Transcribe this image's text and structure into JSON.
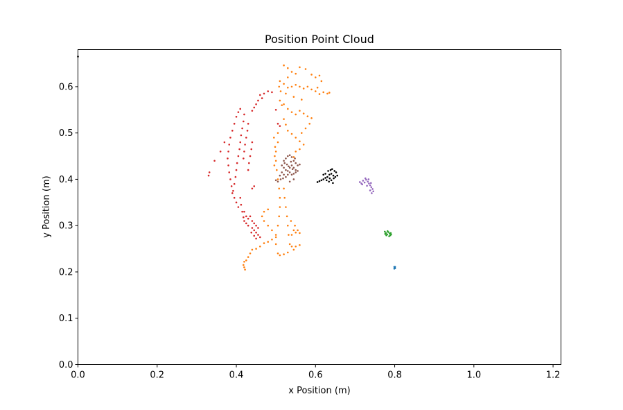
{
  "chart_data": {
    "type": "scatter",
    "title": "Position Point Cloud",
    "xlabel": "x Position (m)",
    "ylabel": "y Position (m)",
    "xlim": [
      0.0,
      1.22
    ],
    "ylim": [
      0.0,
      0.68
    ],
    "xticks": [
      0.0,
      0.2,
      0.4,
      0.6,
      0.8,
      1.0,
      1.2
    ],
    "xtick_labels": [
      "0.0",
      "0.2",
      "0.4",
      "0.6",
      "0.8",
      "1.0",
      "1.2"
    ],
    "yticks": [
      0.0,
      0.1,
      0.2,
      0.3,
      0.4,
      0.5,
      0.6
    ],
    "ytick_labels": [
      "0.0",
      "0.1",
      "0.2",
      "0.3",
      "0.4",
      "0.5",
      "0.6"
    ],
    "grid": false,
    "legend": "none",
    "series": [
      {
        "color": "#1f77b4",
        "points": [
          [
            0.799,
            0.211
          ],
          [
            0.8,
            0.209
          ],
          [
            0.801,
            0.208
          ],
          [
            0.799,
            0.207
          ],
          [
            0.8,
            0.21
          ],
          [
            0.801,
            0.211
          ]
        ]
      },
      {
        "color": "#ff7f0e",
        "points": [
          [
            0.52,
            0.646
          ],
          [
            0.53,
            0.64
          ],
          [
            0.54,
            0.632
          ],
          [
            0.55,
            0.628
          ],
          [
            0.56,
            0.642
          ],
          [
            0.575,
            0.638
          ],
          [
            0.59,
            0.626
          ],
          [
            0.6,
            0.62
          ],
          [
            0.61,
            0.624
          ],
          [
            0.615,
            0.612
          ],
          [
            0.605,
            0.598
          ],
          [
            0.62,
            0.588
          ],
          [
            0.63,
            0.585
          ],
          [
            0.635,
            0.587
          ],
          [
            0.51,
            0.612
          ],
          [
            0.52,
            0.606
          ],
          [
            0.53,
            0.598
          ],
          [
            0.54,
            0.6
          ],
          [
            0.55,
            0.604
          ],
          [
            0.56,
            0.6
          ],
          [
            0.57,
            0.596
          ],
          [
            0.58,
            0.6
          ],
          [
            0.59,
            0.594
          ],
          [
            0.6,
            0.59
          ],
          [
            0.61,
            0.584
          ],
          [
            0.525,
            0.585
          ],
          [
            0.545,
            0.578
          ],
          [
            0.565,
            0.572
          ],
          [
            0.51,
            0.57
          ],
          [
            0.52,
            0.562
          ],
          [
            0.53,
            0.552
          ],
          [
            0.54,
            0.545
          ],
          [
            0.55,
            0.54
          ],
          [
            0.56,
            0.548
          ],
          [
            0.57,
            0.542
          ],
          [
            0.58,
            0.536
          ],
          [
            0.59,
            0.532
          ],
          [
            0.585,
            0.52
          ],
          [
            0.575,
            0.51
          ],
          [
            0.565,
            0.5
          ],
          [
            0.52,
            0.53
          ],
          [
            0.525,
            0.518
          ],
          [
            0.53,
            0.505
          ],
          [
            0.54,
            0.498
          ],
          [
            0.55,
            0.49
          ],
          [
            0.56,
            0.482
          ],
          [
            0.57,
            0.475
          ],
          [
            0.56,
            0.465
          ],
          [
            0.55,
            0.46
          ],
          [
            0.545,
            0.448
          ],
          [
            0.505,
            0.5
          ],
          [
            0.505,
            0.48
          ],
          [
            0.5,
            0.46
          ],
          [
            0.5,
            0.44
          ],
          [
            0.502,
            0.42
          ],
          [
            0.505,
            0.4
          ],
          [
            0.508,
            0.38
          ],
          [
            0.51,
            0.36
          ],
          [
            0.51,
            0.34
          ],
          [
            0.508,
            0.32
          ],
          [
            0.505,
            0.3
          ],
          [
            0.5,
            0.28
          ],
          [
            0.5,
            0.26
          ],
          [
            0.495,
            0.49
          ],
          [
            0.498,
            0.47
          ],
          [
            0.497,
            0.45
          ],
          [
            0.496,
            0.43
          ],
          [
            0.52,
            0.38
          ],
          [
            0.522,
            0.36
          ],
          [
            0.525,
            0.34
          ],
          [
            0.528,
            0.32
          ],
          [
            0.53,
            0.3
          ],
          [
            0.532,
            0.28
          ],
          [
            0.535,
            0.26
          ],
          [
            0.54,
            0.255
          ],
          [
            0.55,
            0.255
          ],
          [
            0.56,
            0.258
          ],
          [
            0.545,
            0.248
          ],
          [
            0.53,
            0.242
          ],
          [
            0.52,
            0.238
          ],
          [
            0.51,
            0.236
          ],
          [
            0.505,
            0.24
          ],
          [
            0.54,
            0.28
          ],
          [
            0.545,
            0.29
          ],
          [
            0.55,
            0.285
          ],
          [
            0.555,
            0.29
          ],
          [
            0.56,
            0.284
          ],
          [
            0.548,
            0.3
          ],
          [
            0.538,
            0.31
          ],
          [
            0.5,
            0.275
          ],
          [
            0.49,
            0.27
          ],
          [
            0.48,
            0.265
          ],
          [
            0.47,
            0.262
          ],
          [
            0.46,
            0.255
          ],
          [
            0.45,
            0.25
          ],
          [
            0.44,
            0.248
          ],
          [
            0.435,
            0.24
          ],
          [
            0.43,
            0.232
          ],
          [
            0.425,
            0.225
          ],
          [
            0.42,
            0.222
          ],
          [
            0.418,
            0.215
          ],
          [
            0.42,
            0.21
          ],
          [
            0.422,
            0.205
          ],
          [
            0.49,
            0.29
          ],
          [
            0.48,
            0.3
          ],
          [
            0.47,
            0.31
          ],
          [
            0.465,
            0.32
          ],
          [
            0.47,
            0.33
          ],
          [
            0.48,
            0.335
          ],
          [
            0.515,
            0.56
          ],
          [
            0.512,
            0.59
          ],
          [
            0.508,
            0.6
          ],
          [
            0.53,
            0.62
          ]
        ]
      },
      {
        "color": "#2ca02c",
        "points": [
          [
            0.775,
            0.287
          ],
          [
            0.778,
            0.284
          ],
          [
            0.781,
            0.281
          ],
          [
            0.784,
            0.286
          ],
          [
            0.787,
            0.283
          ],
          [
            0.789,
            0.279
          ],
          [
            0.791,
            0.281
          ],
          [
            0.779,
            0.279
          ],
          [
            0.782,
            0.288
          ],
          [
            0.786,
            0.277
          ],
          [
            0.79,
            0.284
          ],
          [
            0.776,
            0.282
          ]
        ]
      },
      {
        "color": "#d62728",
        "points": [
          [
            0.46,
            0.582
          ],
          [
            0.465,
            0.575
          ],
          [
            0.47,
            0.585
          ],
          [
            0.48,
            0.59
          ],
          [
            0.49,
            0.588
          ],
          [
            0.455,
            0.57
          ],
          [
            0.45,
            0.562
          ],
          [
            0.445,
            0.555
          ],
          [
            0.44,
            0.548
          ],
          [
            0.41,
            0.552
          ],
          [
            0.405,
            0.545
          ],
          [
            0.4,
            0.535
          ],
          [
            0.395,
            0.52
          ],
          [
            0.39,
            0.505
          ],
          [
            0.385,
            0.49
          ],
          [
            0.382,
            0.475
          ],
          [
            0.38,
            0.46
          ],
          [
            0.378,
            0.445
          ],
          [
            0.42,
            0.54
          ],
          [
            0.418,
            0.525
          ],
          [
            0.415,
            0.51
          ],
          [
            0.412,
            0.495
          ],
          [
            0.41,
            0.48
          ],
          [
            0.408,
            0.465
          ],
          [
            0.405,
            0.45
          ],
          [
            0.402,
            0.435
          ],
          [
            0.4,
            0.42
          ],
          [
            0.398,
            0.405
          ],
          [
            0.395,
            0.39
          ],
          [
            0.392,
            0.375
          ],
          [
            0.43,
            0.52
          ],
          [
            0.428,
            0.505
          ],
          [
            0.425,
            0.49
          ],
          [
            0.422,
            0.475
          ],
          [
            0.42,
            0.46
          ],
          [
            0.418,
            0.445
          ],
          [
            0.44,
            0.48
          ],
          [
            0.438,
            0.465
          ],
          [
            0.435,
            0.45
          ],
          [
            0.432,
            0.435
          ],
          [
            0.43,
            0.42
          ],
          [
            0.38,
            0.43
          ],
          [
            0.382,
            0.415
          ],
          [
            0.385,
            0.4
          ],
          [
            0.388,
            0.385
          ],
          [
            0.39,
            0.37
          ],
          [
            0.395,
            0.36
          ],
          [
            0.4,
            0.35
          ],
          [
            0.405,
            0.34
          ],
          [
            0.41,
            0.36
          ],
          [
            0.412,
            0.345
          ],
          [
            0.415,
            0.33
          ],
          [
            0.418,
            0.318
          ],
          [
            0.42,
            0.31
          ],
          [
            0.425,
            0.305
          ],
          [
            0.43,
            0.3
          ],
          [
            0.44,
            0.31
          ],
          [
            0.445,
            0.305
          ],
          [
            0.45,
            0.3
          ],
          [
            0.455,
            0.295
          ],
          [
            0.44,
            0.295
          ],
          [
            0.445,
            0.29
          ],
          [
            0.45,
            0.285
          ],
          [
            0.455,
            0.28
          ],
          [
            0.46,
            0.275
          ],
          [
            0.45,
            0.272
          ],
          [
            0.445,
            0.278
          ],
          [
            0.438,
            0.285
          ],
          [
            0.42,
            0.33
          ],
          [
            0.425,
            0.32
          ],
          [
            0.43,
            0.315
          ],
          [
            0.435,
            0.32
          ],
          [
            0.33,
            0.408
          ],
          [
            0.332,
            0.415
          ],
          [
            0.345,
            0.44
          ],
          [
            0.36,
            0.46
          ],
          [
            0.37,
            0.48
          ],
          [
            0.5,
            0.55
          ],
          [
            0.505,
            0.52
          ],
          [
            0.51,
            0.515
          ],
          [
            0.445,
            0.385
          ],
          [
            0.44,
            0.38
          ]
        ]
      },
      {
        "color": "#9467bd",
        "points": [
          [
            0.712,
            0.394
          ],
          [
            0.716,
            0.391
          ],
          [
            0.72,
            0.397
          ],
          [
            0.724,
            0.393
          ],
          [
            0.728,
            0.399
          ],
          [
            0.732,
            0.395
          ],
          [
            0.735,
            0.391
          ],
          [
            0.738,
            0.387
          ],
          [
            0.741,
            0.383
          ],
          [
            0.744,
            0.379
          ],
          [
            0.746,
            0.374
          ],
          [
            0.742,
            0.37
          ],
          [
            0.738,
            0.376
          ],
          [
            0.73,
            0.386
          ],
          [
            0.726,
            0.402
          ],
          [
            0.734,
            0.4
          ],
          [
            0.718,
            0.389
          ],
          [
            0.74,
            0.392
          ]
        ]
      },
      {
        "color": "#8c564b",
        "points": [
          [
            0.52,
            0.44
          ],
          [
            0.525,
            0.445
          ],
          [
            0.53,
            0.45
          ],
          [
            0.535,
            0.452
          ],
          [
            0.54,
            0.448
          ],
          [
            0.545,
            0.44
          ],
          [
            0.55,
            0.435
          ],
          [
            0.555,
            0.43
          ],
          [
            0.56,
            0.432
          ],
          [
            0.515,
            0.43
          ],
          [
            0.52,
            0.425
          ],
          [
            0.525,
            0.42
          ],
          [
            0.53,
            0.418
          ],
          [
            0.535,
            0.425
          ],
          [
            0.54,
            0.43
          ],
          [
            0.545,
            0.425
          ],
          [
            0.55,
            0.42
          ],
          [
            0.555,
            0.418
          ],
          [
            0.515,
            0.415
          ],
          [
            0.52,
            0.41
          ],
          [
            0.525,
            0.405
          ],
          [
            0.53,
            0.41
          ],
          [
            0.535,
            0.415
          ],
          [
            0.54,
            0.41
          ],
          [
            0.545,
            0.412
          ],
          [
            0.55,
            0.415
          ],
          [
            0.51,
            0.408
          ],
          [
            0.512,
            0.4
          ],
          [
            0.518,
            0.402
          ],
          [
            0.528,
            0.432
          ],
          [
            0.538,
            0.438
          ],
          [
            0.548,
            0.445
          ],
          [
            0.542,
            0.422
          ],
          [
            0.532,
            0.428
          ],
          [
            0.522,
            0.435
          ],
          [
            0.505,
            0.395
          ],
          [
            0.5,
            0.398
          ],
          [
            0.535,
            0.395
          ],
          [
            0.545,
            0.4
          ]
        ]
      },
      {
        "color": "#000000",
        "points": [
          [
            0.605,
            0.394
          ],
          [
            0.61,
            0.396
          ],
          [
            0.615,
            0.398
          ],
          [
            0.62,
            0.4
          ],
          [
            0.625,
            0.403
          ],
          [
            0.63,
            0.405
          ],
          [
            0.635,
            0.41
          ],
          [
            0.64,
            0.412
          ],
          [
            0.645,
            0.408
          ],
          [
            0.65,
            0.405
          ],
          [
            0.655,
            0.408
          ],
          [
            0.632,
            0.418
          ],
          [
            0.638,
            0.42
          ],
          [
            0.642,
            0.422
          ],
          [
            0.648,
            0.418
          ],
          [
            0.652,
            0.415
          ],
          [
            0.628,
            0.398
          ],
          [
            0.634,
            0.395
          ],
          [
            0.64,
            0.398
          ],
          [
            0.646,
            0.402
          ],
          [
            0.625,
            0.412
          ],
          [
            0.62,
            0.41
          ],
          [
            0.636,
            0.402
          ],
          [
            0.644,
            0.392
          ],
          [
            0.0,
            0.665
          ]
        ]
      }
    ]
  }
}
